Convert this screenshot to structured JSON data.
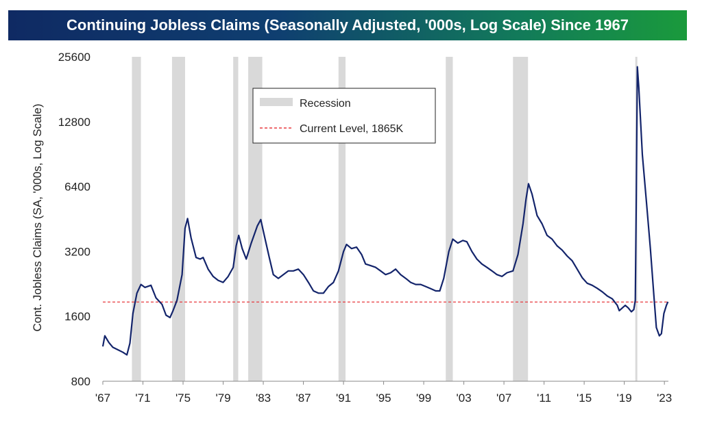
{
  "header": {
    "title": "Continuing Jobless Claims (Seasonally Adjusted, '000s, Log Scale) Since 1967"
  },
  "colors": {
    "line": "#13246b",
    "recession": "#d9d9d9",
    "current_level": "#e8383d"
  },
  "chart_data": {
    "type": "line",
    "scale": "log",
    "ylabel": "Cont. Jobless Claims (SA, '000s, Log Scale)",
    "xlabel": "",
    "yticks": [
      800,
      1600,
      3200,
      6400,
      12800,
      25600
    ],
    "ytick_labels": [
      "800",
      "1600",
      "3200",
      "6400",
      "12800",
      "25600"
    ],
    "ylim": [
      800,
      25600
    ],
    "xlim": [
      1967.0,
      2023.4
    ],
    "xticks": [
      1967,
      1971,
      1975,
      1979,
      1983,
      1987,
      1991,
      1995,
      1999,
      2003,
      2007,
      2011,
      2015,
      2019,
      2023
    ],
    "xtick_labels": [
      "'67",
      "'71",
      "'75",
      "'79",
      "'83",
      "'87",
      "'91",
      "'95",
      "'99",
      "'03",
      "'07",
      "'11",
      "'15",
      "'19",
      "'23"
    ],
    "grid": false,
    "legend_position": "top-center",
    "legend": {
      "recession_label": "Recession",
      "current_label": "Current Level, 1865K"
    },
    "current_level": 1865,
    "recessions": [
      [
        1969.9,
        1970.8
      ],
      [
        1973.9,
        1975.2
      ],
      [
        1980.0,
        1980.5
      ],
      [
        1981.5,
        1982.9
      ],
      [
        1990.5,
        1991.2
      ],
      [
        2001.2,
        2001.9
      ],
      [
        2007.9,
        2009.4
      ],
      [
        2020.1,
        2020.3
      ]
    ],
    "series": [
      {
        "values": [
          [
            1967.0,
            1160
          ],
          [
            1967.2,
            1300
          ],
          [
            1967.6,
            1210
          ],
          [
            1968.0,
            1150
          ],
          [
            1968.5,
            1120
          ],
          [
            1969.0,
            1090
          ],
          [
            1969.4,
            1060
          ],
          [
            1969.7,
            1200
          ],
          [
            1970.0,
            1650
          ],
          [
            1970.4,
            2050
          ],
          [
            1970.8,
            2250
          ],
          [
            1971.2,
            2180
          ],
          [
            1971.8,
            2230
          ],
          [
            1972.3,
            1950
          ],
          [
            1972.9,
            1820
          ],
          [
            1973.3,
            1620
          ],
          [
            1973.7,
            1580
          ],
          [
            1974.0,
            1700
          ],
          [
            1974.4,
            1900
          ],
          [
            1974.9,
            2500
          ],
          [
            1975.2,
            4100
          ],
          [
            1975.45,
            4550
          ],
          [
            1975.8,
            3700
          ],
          [
            1976.3,
            3000
          ],
          [
            1976.7,
            2950
          ],
          [
            1977.0,
            3000
          ],
          [
            1977.5,
            2650
          ],
          [
            1978.0,
            2450
          ],
          [
            1978.5,
            2350
          ],
          [
            1979.0,
            2300
          ],
          [
            1979.5,
            2450
          ],
          [
            1980.0,
            2700
          ],
          [
            1980.3,
            3400
          ],
          [
            1980.55,
            3800
          ],
          [
            1980.9,
            3300
          ],
          [
            1981.3,
            2950
          ],
          [
            1981.8,
            3500
          ],
          [
            1982.4,
            4200
          ],
          [
            1982.75,
            4500
          ],
          [
            1983.1,
            3800
          ],
          [
            1983.6,
            3000
          ],
          [
            1984.0,
            2500
          ],
          [
            1984.5,
            2400
          ],
          [
            1985.0,
            2500
          ],
          [
            1985.5,
            2600
          ],
          [
            1986.0,
            2600
          ],
          [
            1986.5,
            2650
          ],
          [
            1987.0,
            2500
          ],
          [
            1987.5,
            2300
          ],
          [
            1988.0,
            2100
          ],
          [
            1988.5,
            2050
          ],
          [
            1989.0,
            2050
          ],
          [
            1989.5,
            2200
          ],
          [
            1990.0,
            2300
          ],
          [
            1990.5,
            2600
          ],
          [
            1991.0,
            3200
          ],
          [
            1991.3,
            3450
          ],
          [
            1991.8,
            3300
          ],
          [
            1992.3,
            3350
          ],
          [
            1992.8,
            3100
          ],
          [
            1993.2,
            2800
          ],
          [
            1993.7,
            2750
          ],
          [
            1994.2,
            2700
          ],
          [
            1994.7,
            2600
          ],
          [
            1995.2,
            2500
          ],
          [
            1995.7,
            2550
          ],
          [
            1996.2,
            2650
          ],
          [
            1996.7,
            2500
          ],
          [
            1997.2,
            2400
          ],
          [
            1997.7,
            2300
          ],
          [
            1998.2,
            2250
          ],
          [
            1998.7,
            2250
          ],
          [
            1999.2,
            2200
          ],
          [
            1999.7,
            2150
          ],
          [
            2000.2,
            2100
          ],
          [
            2000.6,
            2100
          ],
          [
            2001.0,
            2400
          ],
          [
            2001.5,
            3200
          ],
          [
            2001.9,
            3650
          ],
          [
            2002.4,
            3500
          ],
          [
            2002.9,
            3600
          ],
          [
            2003.3,
            3550
          ],
          [
            2003.8,
            3200
          ],
          [
            2004.3,
            2950
          ],
          [
            2004.8,
            2800
          ],
          [
            2005.3,
            2700
          ],
          [
            2005.8,
            2600
          ],
          [
            2006.3,
            2500
          ],
          [
            2006.8,
            2450
          ],
          [
            2007.3,
            2550
          ],
          [
            2007.9,
            2600
          ],
          [
            2008.4,
            3100
          ],
          [
            2008.9,
            4300
          ],
          [
            2009.2,
            5600
          ],
          [
            2009.45,
            6600
          ],
          [
            2009.8,
            5900
          ],
          [
            2010.3,
            4700
          ],
          [
            2010.8,
            4300
          ],
          [
            2011.3,
            3800
          ],
          [
            2011.8,
            3650
          ],
          [
            2012.3,
            3400
          ],
          [
            2012.8,
            3250
          ],
          [
            2013.3,
            3050
          ],
          [
            2013.8,
            2900
          ],
          [
            2014.3,
            2650
          ],
          [
            2014.8,
            2420
          ],
          [
            2015.3,
            2280
          ],
          [
            2015.8,
            2230
          ],
          [
            2016.3,
            2160
          ],
          [
            2016.8,
            2080
          ],
          [
            2017.3,
            1990
          ],
          [
            2017.8,
            1930
          ],
          [
            2018.3,
            1800
          ],
          [
            2018.5,
            1700
          ],
          [
            2018.8,
            1750
          ],
          [
            2019.1,
            1800
          ],
          [
            2019.4,
            1750
          ],
          [
            2019.7,
            1680
          ],
          [
            2019.95,
            1720
          ],
          [
            2020.1,
            1900
          ],
          [
            2020.2,
            6000
          ],
          [
            2020.3,
            23000
          ],
          [
            2020.45,
            18500
          ],
          [
            2020.8,
            9000
          ],
          [
            2021.2,
            5500
          ],
          [
            2021.6,
            3300
          ],
          [
            2021.95,
            2000
          ],
          [
            2022.2,
            1420
          ],
          [
            2022.5,
            1300
          ],
          [
            2022.7,
            1330
          ],
          [
            2022.95,
            1650
          ],
          [
            2023.2,
            1800
          ],
          [
            2023.35,
            1870
          ]
        ]
      }
    ]
  }
}
